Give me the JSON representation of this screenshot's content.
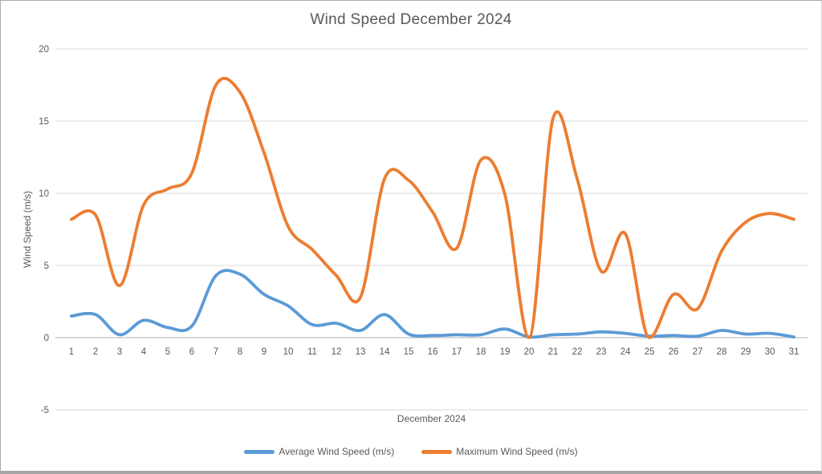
{
  "chart_data": {
    "type": "line",
    "title": "Wind Speed December 2024",
    "xlabel": "December 2024",
    "ylabel": "Wind Speed (m/s)",
    "categories": [
      "1",
      "2",
      "3",
      "4",
      "5",
      "6",
      "7",
      "8",
      "9",
      "10",
      "11",
      "12",
      "13",
      "14",
      "15",
      "16",
      "17",
      "18",
      "19",
      "20",
      "21",
      "22",
      "23",
      "24",
      "25",
      "26",
      "27",
      "28",
      "29",
      "30",
      "31"
    ],
    "series": [
      {
        "name": "Average Wind Speed (m/s)",
        "color": "#5B9BD5",
        "values": [
          1.5,
          1.6,
          0.2,
          1.2,
          0.7,
          0.8,
          4.3,
          4.4,
          3.0,
          2.2,
          0.9,
          1.0,
          0.5,
          1.6,
          0.25,
          0.15,
          0.2,
          0.2,
          0.6,
          0.05,
          0.2,
          0.25,
          0.4,
          0.3,
          0.1,
          0.15,
          0.1,
          0.5,
          0.25,
          0.3,
          0.05
        ]
      },
      {
        "name": "Maximum Wind Speed (m/s)",
        "color": "#ED7D31",
        "values": [
          8.2,
          8.5,
          3.6,
          9.2,
          10.3,
          11.4,
          17.5,
          17.0,
          12.8,
          7.7,
          6.1,
          4.3,
          2.8,
          11.0,
          10.9,
          8.7,
          6.2,
          12.3,
          9.9,
          0.0,
          15.2,
          11.0,
          4.6,
          7.2,
          0.0,
          3.0,
          2.0,
          6.0,
          8.0,
          8.6,
          8.2
        ]
      }
    ],
    "ylim": [
      -5,
      20
    ],
    "y_ticks": [
      20,
      15,
      10,
      5,
      0,
      -5
    ],
    "grid": true,
    "smooth": true,
    "legend_position": "bottom"
  },
  "styles": {
    "grid_color": "#D9D9D9",
    "axis_line_color": "#BFBFBF",
    "tick_text_color": "#595959",
    "background": "#FFFFFF"
  }
}
